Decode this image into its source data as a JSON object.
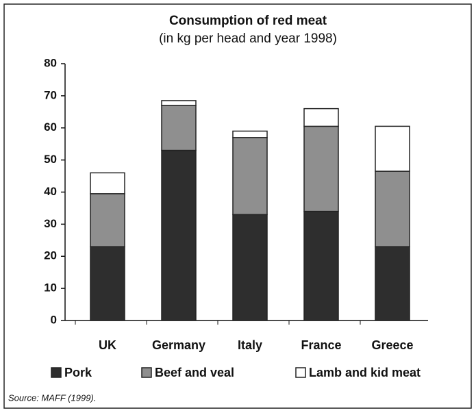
{
  "chart_data": {
    "type": "stacked_bar",
    "title": "Consumption of red meat",
    "subtitle": "(in kg per head and year 1998)",
    "categories": [
      "UK",
      "Germany",
      "Italy",
      "France",
      "Greece"
    ],
    "series": [
      {
        "name": "Pork",
        "color": "#2e2e2e",
        "values": [
          23,
          53,
          33,
          34,
          23
        ]
      },
      {
        "name": "Beef and veal",
        "color": "#8f8f8f",
        "values": [
          16.5,
          14,
          24,
          26.5,
          23.5
        ]
      },
      {
        "name": "Lamb and kid meat",
        "color": "#ffffff",
        "values": [
          6.5,
          1.5,
          2,
          5.5,
          14
        ]
      }
    ],
    "ylim": [
      0,
      80
    ],
    "yticks": [
      0,
      10,
      20,
      30,
      40,
      50,
      60,
      70,
      80
    ],
    "source": "Source: MAFF (1999)."
  }
}
